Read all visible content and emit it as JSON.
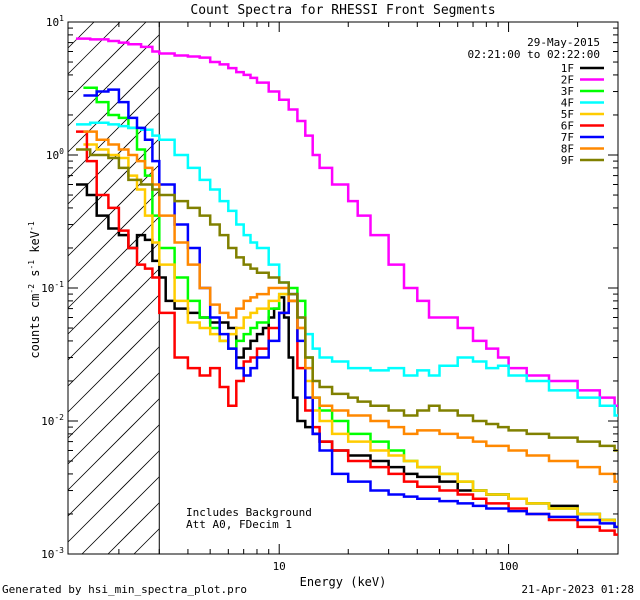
{
  "chart_data": {
    "type": "line",
    "title": "Count Spectra for RHESSI Front Segments",
    "date": "29-May-2015",
    "time_range": "02:21:00 to 02:22:00",
    "xlabel": "Energy (keV)",
    "ylabel_main": "counts cm",
    "ylabel_parts": [
      "counts cm",
      "-2",
      " s",
      "-1",
      " keV",
      "-1"
    ],
    "xscale": "log",
    "yscale": "log",
    "xlim": [
      1.2,
      300
    ],
    "ylim": [
      0.001,
      10
    ],
    "x_ticks": [
      {
        "value": 10,
        "label": "10"
      },
      {
        "value": 100,
        "label": "100"
      }
    ],
    "y_ticks": [
      {
        "value": 0.001,
        "base": "10",
        "exp": "-3"
      },
      {
        "value": 0.01,
        "base": "10",
        "exp": "-2"
      },
      {
        "value": 0.1,
        "base": "10",
        "exp": "-1"
      },
      {
        "value": 1,
        "base": "10",
        "exp": "0"
      },
      {
        "value": 10,
        "base": "10",
        "exp": "1"
      }
    ],
    "hatched_region": [
      1.2,
      3
    ],
    "annotations": [
      "Includes Background",
      "Att A0, FDecim 1"
    ],
    "legend_position": "top-right",
    "series": [
      {
        "name": "1F",
        "color": "#000000",
        "x": [
          1.3,
          1.45,
          1.6,
          1.8,
          2.0,
          2.2,
          2.4,
          2.6,
          2.8,
          3.0,
          3.2,
          3.5,
          4,
          4.5,
          5,
          5.5,
          6,
          6.5,
          7,
          7.5,
          8,
          8.5,
          9,
          9.5,
          10,
          10.5,
          11,
          11.5,
          12,
          13,
          14,
          15,
          17,
          20,
          25,
          30,
          35,
          40,
          50,
          60,
          70,
          80,
          100,
          120,
          150,
          200,
          250,
          290
        ],
        "y": [
          0.6,
          0.5,
          0.35,
          0.28,
          0.25,
          0.2,
          0.25,
          0.23,
          0.16,
          0.12,
          0.08,
          0.07,
          0.065,
          0.06,
          0.055,
          0.055,
          0.05,
          0.03,
          0.035,
          0.04,
          0.045,
          0.05,
          0.06,
          0.07,
          0.085,
          0.06,
          0.03,
          0.015,
          0.01,
          0.009,
          0.008,
          0.007,
          0.006,
          0.0055,
          0.005,
          0.0045,
          0.004,
          0.0038,
          0.0035,
          0.003,
          0.003,
          0.0028,
          0.0026,
          0.0024,
          0.0023,
          0.002,
          0.0018,
          0.0016
        ]
      },
      {
        "name": "2F",
        "color": "#ff00ff",
        "x": [
          1.3,
          1.5,
          1.8,
          2.0,
          2.2,
          2.5,
          2.8,
          3.0,
          3.5,
          4,
          4.5,
          5,
          5.5,
          6,
          6.5,
          7,
          7.5,
          8,
          9,
          10,
          11,
          12,
          13,
          14,
          15,
          17,
          20,
          22,
          25,
          30,
          35,
          40,
          45,
          50,
          60,
          70,
          80,
          90,
          100,
          120,
          150,
          200,
          250,
          290
        ],
        "y": [
          7.5,
          7.4,
          7.2,
          7.0,
          6.8,
          6.5,
          6.0,
          5.8,
          5.6,
          5.5,
          5.4,
          5.0,
          4.8,
          4.5,
          4.2,
          4.0,
          3.8,
          3.5,
          3.0,
          2.6,
          2.2,
          1.8,
          1.4,
          1.0,
          0.8,
          0.6,
          0.45,
          0.35,
          0.25,
          0.15,
          0.1,
          0.08,
          0.06,
          0.06,
          0.05,
          0.04,
          0.035,
          0.03,
          0.025,
          0.022,
          0.02,
          0.017,
          0.015,
          0.013
        ]
      },
      {
        "name": "3F",
        "color": "#00ff00",
        "x": [
          1.4,
          1.6,
          1.8,
          2.0,
          2.2,
          2.4,
          2.6,
          2.8,
          3.0,
          3.5,
          4,
          4.5,
          5,
          5.5,
          6,
          6.5,
          7,
          7.5,
          8,
          9,
          10,
          11,
          12,
          13,
          14,
          15,
          17,
          20,
          25,
          30,
          35,
          40,
          50,
          60,
          70,
          80,
          100,
          120,
          150,
          200,
          250,
          290
        ],
        "y": [
          3.2,
          2.5,
          2.0,
          1.9,
          1.6,
          1.1,
          0.7,
          0.35,
          0.2,
          0.12,
          0.08,
          0.06,
          0.05,
          0.04,
          0.035,
          0.04,
          0.045,
          0.05,
          0.055,
          0.07,
          0.09,
          0.1,
          0.08,
          0.03,
          0.015,
          0.012,
          0.01,
          0.008,
          0.007,
          0.006,
          0.005,
          0.0045,
          0.004,
          0.0035,
          0.003,
          0.0028,
          0.0026,
          0.0024,
          0.0022,
          0.002,
          0.0018,
          0.0016
        ]
      },
      {
        "name": "4F",
        "color": "#00ffff",
        "x": [
          1.3,
          1.5,
          1.8,
          2.0,
          2.2,
          2.5,
          2.8,
          3.0,
          3.5,
          4,
          4.5,
          5,
          5.5,
          6,
          6.5,
          7,
          7.5,
          8,
          9,
          10,
          11,
          12,
          13,
          14,
          15,
          17,
          20,
          22,
          25,
          30,
          35,
          40,
          45,
          50,
          60,
          70,
          80,
          90,
          100,
          120,
          150,
          200,
          250,
          290
        ],
        "y": [
          1.7,
          1.75,
          1.7,
          1.65,
          1.6,
          1.55,
          1.4,
          1.3,
          1.0,
          0.8,
          0.65,
          0.55,
          0.45,
          0.38,
          0.3,
          0.25,
          0.22,
          0.2,
          0.15,
          0.11,
          0.08,
          0.06,
          0.045,
          0.035,
          0.03,
          0.028,
          0.025,
          0.025,
          0.024,
          0.025,
          0.022,
          0.024,
          0.022,
          0.026,
          0.03,
          0.028,
          0.025,
          0.026,
          0.022,
          0.02,
          0.017,
          0.015,
          0.013,
          0.011
        ]
      },
      {
        "name": "5F",
        "color": "#ffcc00",
        "x": [
          1.4,
          1.6,
          1.8,
          2.0,
          2.2,
          2.4,
          2.6,
          2.8,
          3.0,
          3.5,
          4,
          4.5,
          5,
          5.5,
          6,
          6.5,
          7,
          7.5,
          8,
          9,
          10,
          11,
          12,
          13,
          14,
          15,
          17,
          20,
          25,
          30,
          35,
          40,
          50,
          60,
          70,
          80,
          100,
          120,
          150,
          200,
          250,
          290
        ],
        "y": [
          1.2,
          1.1,
          1.0,
          0.95,
          0.7,
          0.55,
          0.35,
          0.22,
          0.15,
          0.08,
          0.055,
          0.05,
          0.045,
          0.04,
          0.045,
          0.05,
          0.06,
          0.065,
          0.07,
          0.08,
          0.09,
          0.08,
          0.05,
          0.02,
          0.012,
          0.01,
          0.008,
          0.007,
          0.006,
          0.0055,
          0.005,
          0.0045,
          0.004,
          0.0035,
          0.003,
          0.0028,
          0.0026,
          0.0024,
          0.0022,
          0.002,
          0.0018,
          0.0016
        ]
      },
      {
        "name": "6F",
        "color": "#ff0000",
        "x": [
          1.3,
          1.45,
          1.6,
          1.8,
          2.0,
          2.2,
          2.4,
          2.6,
          2.8,
          3.0,
          3.5,
          4,
          4.5,
          5,
          5.5,
          6,
          6.5,
          7,
          7.5,
          8,
          9,
          10,
          11,
          12,
          13,
          14,
          15,
          17,
          20,
          25,
          30,
          35,
          40,
          50,
          60,
          70,
          80,
          100,
          120,
          150,
          200,
          250,
          290
        ],
        "y": [
          1.5,
          0.9,
          0.5,
          0.4,
          0.27,
          0.2,
          0.15,
          0.14,
          0.12,
          0.065,
          0.03,
          0.025,
          0.022,
          0.025,
          0.018,
          0.013,
          0.02,
          0.028,
          0.03,
          0.035,
          0.05,
          0.065,
          0.08,
          0.025,
          0.012,
          0.009,
          0.007,
          0.006,
          0.005,
          0.0045,
          0.004,
          0.0035,
          0.0032,
          0.003,
          0.0028,
          0.0026,
          0.0024,
          0.0022,
          0.002,
          0.0018,
          0.0016,
          0.0015,
          0.0014
        ]
      },
      {
        "name": "7F",
        "color": "#0000ff",
        "x": [
          1.4,
          1.6,
          1.8,
          2.0,
          2.2,
          2.4,
          2.6,
          2.8,
          3.0,
          3.5,
          4,
          4.5,
          5,
          5.5,
          6,
          6.5,
          7,
          7.5,
          8,
          9,
          10,
          11,
          12,
          13,
          14,
          15,
          17,
          20,
          25,
          30,
          35,
          40,
          50,
          60,
          70,
          80,
          100,
          120,
          150,
          200,
          250,
          290
        ],
        "y": [
          2.8,
          3.0,
          3.1,
          2.5,
          1.9,
          1.6,
          1.3,
          0.9,
          0.6,
          0.3,
          0.2,
          0.1,
          0.06,
          0.045,
          0.035,
          0.025,
          0.022,
          0.025,
          0.03,
          0.04,
          0.065,
          0.09,
          0.04,
          0.015,
          0.008,
          0.006,
          0.004,
          0.0035,
          0.003,
          0.0028,
          0.0027,
          0.0026,
          0.0025,
          0.0024,
          0.0023,
          0.0022,
          0.0021,
          0.002,
          0.0019,
          0.0018,
          0.0017,
          0.0016
        ]
      },
      {
        "name": "8F",
        "color": "#ff8800",
        "x": [
          1.4,
          1.6,
          1.8,
          2.0,
          2.2,
          2.4,
          2.6,
          2.8,
          3.0,
          3.5,
          4,
          4.5,
          5,
          5.5,
          6,
          6.5,
          7,
          7.5,
          8,
          9,
          10,
          11,
          12,
          13,
          14,
          15,
          17,
          20,
          25,
          30,
          35,
          40,
          50,
          60,
          70,
          80,
          100,
          120,
          150,
          200,
          250,
          290
        ],
        "y": [
          1.5,
          1.3,
          1.2,
          1.1,
          1.0,
          0.9,
          0.8,
          0.6,
          0.35,
          0.22,
          0.15,
          0.1,
          0.075,
          0.065,
          0.06,
          0.07,
          0.08,
          0.085,
          0.09,
          0.1,
          0.1,
          0.08,
          0.05,
          0.025,
          0.015,
          0.013,
          0.012,
          0.011,
          0.01,
          0.009,
          0.008,
          0.0085,
          0.008,
          0.0075,
          0.007,
          0.0065,
          0.006,
          0.0055,
          0.005,
          0.0045,
          0.004,
          0.0035
        ]
      },
      {
        "name": "9F",
        "color": "#808000",
        "x": [
          1.3,
          1.5,
          1.8,
          2.0,
          2.2,
          2.5,
          2.8,
          3.0,
          3.5,
          4,
          4.5,
          5,
          5.5,
          6,
          6.5,
          7,
          7.5,
          8,
          9,
          10,
          11,
          12,
          13,
          14,
          15,
          17,
          20,
          22,
          25,
          30,
          35,
          40,
          45,
          50,
          60,
          70,
          80,
          90,
          100,
          120,
          150,
          200,
          250,
          290
        ],
        "y": [
          1.1,
          1.0,
          0.95,
          0.8,
          0.65,
          0.6,
          0.55,
          0.5,
          0.45,
          0.4,
          0.35,
          0.3,
          0.25,
          0.2,
          0.17,
          0.15,
          0.14,
          0.13,
          0.12,
          0.11,
          0.09,
          0.06,
          0.03,
          0.02,
          0.018,
          0.016,
          0.015,
          0.014,
          0.013,
          0.012,
          0.011,
          0.012,
          0.013,
          0.012,
          0.011,
          0.01,
          0.0095,
          0.009,
          0.0085,
          0.008,
          0.0075,
          0.007,
          0.0065,
          0.006
        ]
      }
    ]
  },
  "footer": {
    "left": "Generated by hsi_min_spectra_plot.pro",
    "right": "21-Apr-2023 01:28"
  }
}
